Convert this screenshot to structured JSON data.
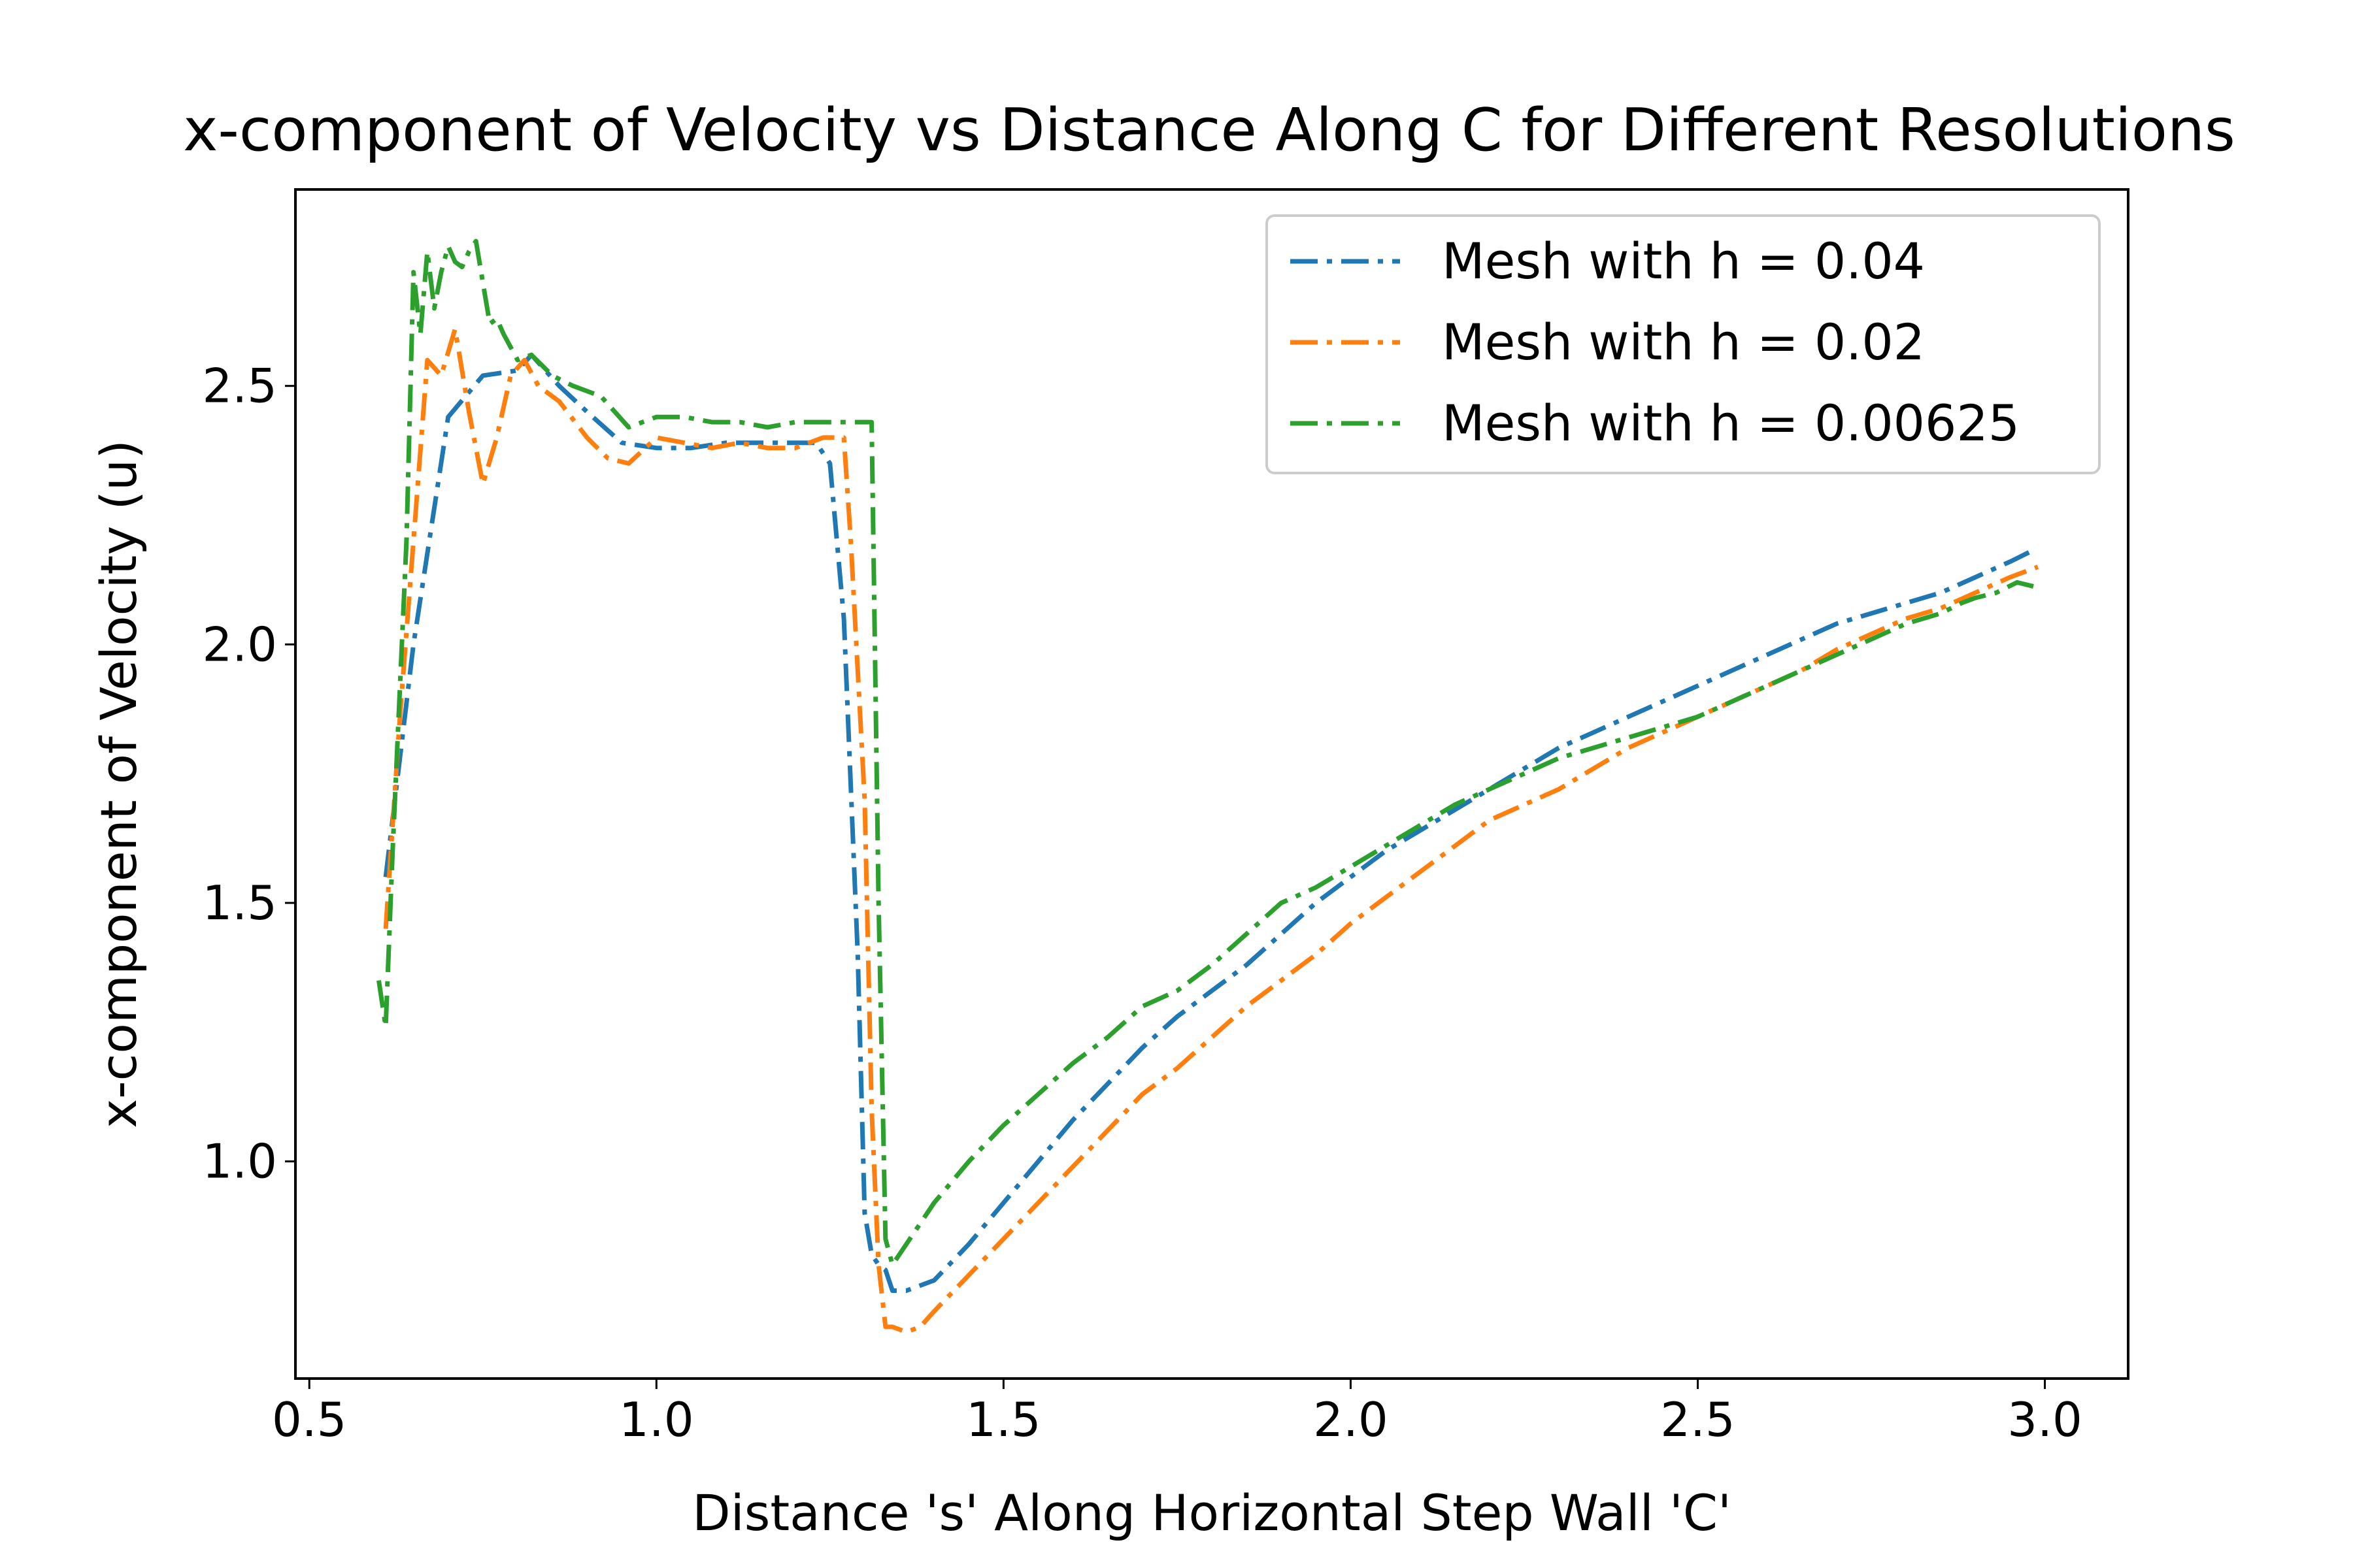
{
  "chart_data": {
    "type": "line",
    "title": "x-component of Velocity vs Distance Along C for Different Resolutions",
    "xlabel": "Distance 's' Along Horizontal Step Wall 'C'",
    "ylabel": "x-component of Velocity (u)",
    "xlim": [
      0.48,
      3.12
    ],
    "ylim": [
      0.58,
      2.88
    ],
    "xticks": [
      0.5,
      1.0,
      1.5,
      2.0,
      2.5,
      3.0
    ],
    "xtick_labels": [
      "0.5",
      "1.0",
      "1.5",
      "2.0",
      "2.5",
      "3.0"
    ],
    "yticks": [
      1.0,
      1.5,
      2.0,
      2.5
    ],
    "ytick_labels": [
      "1.0",
      "1.5",
      "2.0",
      "2.5"
    ],
    "grid": false,
    "legend_position": "top-right",
    "line_style": "dash-dot",
    "series": [
      {
        "name": "Mesh with h = 0.04",
        "color": "#1f77b4",
        "x": [
          0.61,
          0.65,
          0.7,
          0.75,
          0.8,
          0.82,
          0.86,
          0.9,
          0.95,
          1.0,
          1.05,
          1.1,
          1.15,
          1.2,
          1.23,
          1.25,
          1.27,
          1.29,
          1.3,
          1.31,
          1.32,
          1.33,
          1.34,
          1.36,
          1.4,
          1.45,
          1.5,
          1.55,
          1.6,
          1.65,
          1.7,
          1.75,
          1.8,
          1.85,
          1.9,
          1.95,
          2.0,
          2.05,
          2.1,
          2.15,
          2.2,
          2.25,
          2.3,
          2.35,
          2.4,
          2.45,
          2.5,
          2.55,
          2.6,
          2.65,
          2.7,
          2.75,
          2.8,
          2.85,
          2.9,
          2.95,
          2.98
        ],
        "y": [
          1.55,
          2.0,
          2.44,
          2.52,
          2.53,
          2.56,
          2.5,
          2.45,
          2.39,
          2.38,
          2.38,
          2.39,
          2.39,
          2.39,
          2.39,
          2.35,
          2.05,
          1.4,
          0.9,
          0.82,
          0.8,
          0.79,
          0.75,
          0.75,
          0.77,
          0.84,
          0.92,
          1.0,
          1.08,
          1.15,
          1.22,
          1.28,
          1.33,
          1.38,
          1.44,
          1.5,
          1.55,
          1.6,
          1.64,
          1.68,
          1.72,
          1.76,
          1.8,
          1.83,
          1.86,
          1.89,
          1.92,
          1.95,
          1.98,
          2.01,
          2.04,
          2.06,
          2.08,
          2.1,
          2.13,
          2.16,
          2.18
        ]
      },
      {
        "name": "Mesh with h = 0.02",
        "color": "#ff7f0e",
        "x": [
          0.61,
          0.63,
          0.65,
          0.67,
          0.69,
          0.71,
          0.73,
          0.75,
          0.77,
          0.79,
          0.81,
          0.83,
          0.86,
          0.9,
          0.93,
          0.96,
          1.0,
          1.04,
          1.08,
          1.12,
          1.16,
          1.2,
          1.24,
          1.27,
          1.28,
          1.3,
          1.31,
          1.32,
          1.33,
          1.34,
          1.36,
          1.38,
          1.4,
          1.45,
          1.5,
          1.55,
          1.6,
          1.65,
          1.7,
          1.75,
          1.8,
          1.85,
          1.9,
          1.95,
          2.0,
          2.05,
          2.1,
          2.15,
          2.2,
          2.25,
          2.3,
          2.35,
          2.4,
          2.45,
          2.5,
          2.55,
          2.6,
          2.65,
          2.7,
          2.75,
          2.8,
          2.85,
          2.9,
          2.95,
          2.99
        ],
        "y": [
          1.45,
          1.85,
          2.2,
          2.55,
          2.52,
          2.61,
          2.45,
          2.31,
          2.4,
          2.52,
          2.55,
          2.5,
          2.47,
          2.4,
          2.36,
          2.35,
          2.4,
          2.39,
          2.38,
          2.39,
          2.38,
          2.38,
          2.4,
          2.4,
          2.2,
          1.7,
          1.1,
          0.8,
          0.68,
          0.68,
          0.67,
          0.68,
          0.71,
          0.78,
          0.85,
          0.92,
          0.99,
          1.06,
          1.13,
          1.18,
          1.24,
          1.3,
          1.35,
          1.4,
          1.46,
          1.51,
          1.56,
          1.61,
          1.66,
          1.69,
          1.72,
          1.76,
          1.8,
          1.83,
          1.86,
          1.89,
          1.92,
          1.95,
          1.99,
          2.02,
          2.05,
          2.07,
          2.1,
          2.13,
          2.15
        ]
      },
      {
        "name": "Mesh with h = 0.00625",
        "color": "#2ca02c",
        "x": [
          0.6,
          0.61,
          0.62,
          0.63,
          0.64,
          0.65,
          0.66,
          0.67,
          0.68,
          0.69,
          0.7,
          0.71,
          0.72,
          0.73,
          0.74,
          0.75,
          0.76,
          0.77,
          0.78,
          0.8,
          0.82,
          0.85,
          0.88,
          0.92,
          0.96,
          1.0,
          1.04,
          1.08,
          1.12,
          1.16,
          1.2,
          1.24,
          1.28,
          1.31,
          1.32,
          1.33,
          1.34,
          1.36,
          1.4,
          1.45,
          1.5,
          1.55,
          1.6,
          1.65,
          1.7,
          1.75,
          1.8,
          1.85,
          1.9,
          1.95,
          2.0,
          2.05,
          2.1,
          2.15,
          2.2,
          2.25,
          2.3,
          2.35,
          2.4,
          2.45,
          2.5,
          2.55,
          2.6,
          2.65,
          2.7,
          2.75,
          2.8,
          2.85,
          2.88,
          2.9,
          2.93,
          2.96,
          2.99
        ],
        "y": [
          1.35,
          1.26,
          1.6,
          1.9,
          2.2,
          2.72,
          2.6,
          2.76,
          2.65,
          2.72,
          2.77,
          2.74,
          2.73,
          2.76,
          2.78,
          2.7,
          2.62,
          2.63,
          2.6,
          2.55,
          2.56,
          2.52,
          2.5,
          2.48,
          2.42,
          2.44,
          2.44,
          2.43,
          2.43,
          2.42,
          2.43,
          2.43,
          2.43,
          2.43,
          1.5,
          0.85,
          0.8,
          0.84,
          0.92,
          1.0,
          1.07,
          1.13,
          1.19,
          1.24,
          1.3,
          1.33,
          1.38,
          1.44,
          1.5,
          1.53,
          1.57,
          1.61,
          1.65,
          1.69,
          1.72,
          1.75,
          1.78,
          1.8,
          1.82,
          1.84,
          1.86,
          1.89,
          1.92,
          1.95,
          1.98,
          2.01,
          2.04,
          2.06,
          2.08,
          2.09,
          2.1,
          2.12,
          2.11
        ]
      }
    ]
  }
}
